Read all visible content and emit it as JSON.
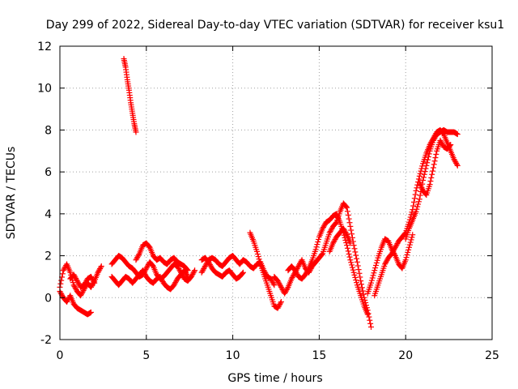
{
  "chart_data": {
    "type": "scatter",
    "title": "Day 299 of 2022, Sidereal Day-to-day VTEC variation (SDTVAR) for receiver ksu1",
    "xlabel": "GPS time / hours",
    "ylabel": "SDTVAR / TECUs",
    "xlim": [
      0,
      25
    ],
    "ylim": [
      -2,
      12
    ],
    "xticks": [
      0,
      5,
      10,
      15,
      20,
      25
    ],
    "xtick_labels": [
      "0",
      "5",
      "10",
      "15",
      "20",
      "25"
    ],
    "yticks": [
      -2,
      0,
      2,
      4,
      6,
      8,
      10,
      12
    ],
    "ytick_labels": [
      "-2",
      "0",
      "2",
      "4",
      "6",
      "8",
      "10",
      "12"
    ],
    "grid": true,
    "marker": "+",
    "series": [
      {
        "name": "SDTVAR",
        "color": "#ff0000",
        "tracks": [
          [
            [
              3.7,
              11.4
            ],
            [
              3.8,
              11.0
            ],
            [
              3.9,
              10.4
            ],
            [
              4.0,
              9.9
            ],
            [
              4.1,
              9.3
            ],
            [
              4.2,
              8.8
            ],
            [
              4.3,
              8.3
            ],
            [
              4.4,
              7.9
            ]
          ],
          [
            [
              0.0,
              0.5
            ],
            [
              0.2,
              1.3
            ],
            [
              0.4,
              1.6
            ],
            [
              0.6,
              1.2
            ],
            [
              0.8,
              0.6
            ],
            [
              1.0,
              0.3
            ],
            [
              1.2,
              0.1
            ],
            [
              1.4,
              0.4
            ],
            [
              1.6,
              0.7
            ],
            [
              1.8,
              0.5
            ],
            [
              2.0,
              0.8
            ],
            [
              2.2,
              1.2
            ],
            [
              2.4,
              1.5
            ]
          ],
          [
            [
              0.0,
              0.3
            ],
            [
              0.2,
              0.0
            ],
            [
              0.4,
              -0.2
            ],
            [
              0.6,
              0.1
            ],
            [
              0.8,
              -0.3
            ],
            [
              1.0,
              -0.5
            ],
            [
              1.2,
              -0.6
            ],
            [
              1.4,
              -0.7
            ],
            [
              1.6,
              -0.8
            ],
            [
              1.8,
              -0.7
            ]
          ],
          [
            [
              0.6,
              0.9
            ],
            [
              0.8,
              1.1
            ],
            [
              1.0,
              0.8
            ],
            [
              1.2,
              0.5
            ],
            [
              1.4,
              0.6
            ],
            [
              1.6,
              0.9
            ],
            [
              1.8,
              1.0
            ],
            [
              2.0,
              0.7
            ]
          ],
          [
            [
              3.0,
              1.6
            ],
            [
              3.2,
              1.8
            ],
            [
              3.4,
              2.0
            ],
            [
              3.6,
              1.9
            ],
            [
              3.8,
              1.7
            ],
            [
              4.0,
              1.5
            ],
            [
              4.2,
              1.4
            ],
            [
              4.4,
              1.2
            ],
            [
              4.6,
              1.0
            ],
            [
              4.8,
              1.1
            ],
            [
              5.0,
              1.4
            ],
            [
              5.2,
              1.7
            ],
            [
              5.4,
              1.5
            ],
            [
              5.6,
              1.1
            ],
            [
              5.8,
              0.9
            ],
            [
              6.0,
              1.0
            ],
            [
              6.2,
              1.2
            ],
            [
              6.4,
              1.4
            ],
            [
              6.6,
              1.6
            ],
            [
              6.8,
              1.5
            ],
            [
              7.0,
              1.2
            ],
            [
              7.2,
              0.9
            ],
            [
              7.4,
              0.8
            ],
            [
              7.6,
              1.0
            ],
            [
              7.8,
              1.3
            ]
          ],
          [
            [
              3.0,
              1.0
            ],
            [
              3.2,
              0.8
            ],
            [
              3.4,
              0.6
            ],
            [
              3.6,
              0.8
            ],
            [
              3.8,
              1.0
            ],
            [
              4.0,
              0.9
            ],
            [
              4.2,
              0.7
            ],
            [
              4.4,
              0.9
            ],
            [
              4.6,
              1.1
            ],
            [
              4.8,
              1.3
            ],
            [
              5.0,
              1.0
            ],
            [
              5.2,
              0.8
            ],
            [
              5.4,
              0.7
            ],
            [
              5.6,
              0.9
            ],
            [
              5.8,
              1.0
            ],
            [
              6.0,
              0.7
            ],
            [
              6.2,
              0.5
            ],
            [
              6.4,
              0.4
            ],
            [
              6.6,
              0.6
            ],
            [
              6.8,
              0.9
            ],
            [
              7.0,
              1.1
            ],
            [
              7.2,
              1.3
            ],
            [
              7.4,
              1.0
            ]
          ],
          [
            [
              4.4,
              1.8
            ],
            [
              4.6,
              2.1
            ],
            [
              4.8,
              2.5
            ],
            [
              5.0,
              2.6
            ],
            [
              5.2,
              2.4
            ],
            [
              5.4,
              2.0
            ],
            [
              5.6,
              1.8
            ],
            [
              5.8,
              1.9
            ],
            [
              6.0,
              1.7
            ],
            [
              6.2,
              1.6
            ],
            [
              6.4,
              1.8
            ],
            [
              6.6,
              1.9
            ],
            [
              6.8,
              1.7
            ],
            [
              7.0,
              1.6
            ],
            [
              7.2,
              1.5
            ],
            [
              7.4,
              1.3
            ]
          ],
          [
            [
              8.2,
              1.2
            ],
            [
              8.4,
              1.5
            ],
            [
              8.6,
              1.8
            ],
            [
              8.8,
              1.9
            ],
            [
              9.0,
              1.8
            ],
            [
              9.2,
              1.6
            ],
            [
              9.4,
              1.5
            ],
            [
              9.6,
              1.7
            ],
            [
              9.8,
              1.9
            ],
            [
              10.0,
              2.0
            ],
            [
              10.2,
              1.8
            ],
            [
              10.4,
              1.6
            ],
            [
              10.6,
              1.8
            ],
            [
              10.8,
              1.7
            ],
            [
              11.0,
              1.5
            ],
            [
              11.2,
              1.4
            ],
            [
              11.4,
              1.6
            ],
            [
              11.6,
              1.7
            ],
            [
              11.8,
              1.3
            ],
            [
              12.0,
              1.0
            ],
            [
              12.2,
              0.9
            ],
            [
              12.4,
              0.6
            ]
          ],
          [
            [
              8.2,
              1.8
            ],
            [
              8.4,
              1.9
            ],
            [
              8.6,
              1.7
            ],
            [
              8.8,
              1.4
            ],
            [
              9.0,
              1.2
            ],
            [
              9.2,
              1.1
            ],
            [
              9.4,
              1.0
            ],
            [
              9.6,
              1.2
            ],
            [
              9.8,
              1.3
            ],
            [
              10.0,
              1.1
            ],
            [
              10.2,
              0.9
            ],
            [
              10.4,
              1.0
            ],
            [
              10.6,
              1.2
            ]
          ],
          [
            [
              11.0,
              3.1
            ],
            [
              11.2,
              2.7
            ],
            [
              11.4,
              2.2
            ],
            [
              11.6,
              1.6
            ],
            [
              11.8,
              1.1
            ],
            [
              12.0,
              0.6
            ],
            [
              12.2,
              0.1
            ],
            [
              12.4,
              -0.4
            ],
            [
              12.6,
              -0.5
            ],
            [
              12.8,
              -0.2
            ]
          ],
          [
            [
              12.4,
              1.0
            ],
            [
              12.6,
              0.8
            ],
            [
              12.8,
              0.5
            ],
            [
              13.0,
              0.2
            ],
            [
              13.2,
              0.5
            ],
            [
              13.4,
              0.9
            ],
            [
              13.6,
              1.2
            ],
            [
              13.8,
              1.5
            ],
            [
              14.0,
              1.8
            ],
            [
              14.2,
              1.4
            ],
            [
              14.4,
              1.2
            ],
            [
              14.6,
              1.5
            ],
            [
              14.8,
              1.7
            ],
            [
              15.0,
              1.9
            ],
            [
              15.2,
              2.1
            ],
            [
              15.4,
              2.6
            ],
            [
              15.6,
              3.1
            ],
            [
              15.8,
              3.4
            ],
            [
              16.0,
              3.6
            ],
            [
              16.2,
              4.1
            ],
            [
              16.4,
              4.5
            ],
            [
              16.6,
              4.3
            ],
            [
              16.8,
              3.4
            ],
            [
              17.0,
              2.5
            ],
            [
              17.2,
              1.7
            ],
            [
              17.4,
              0.8
            ],
            [
              17.6,
              0.0
            ],
            [
              17.8,
              -0.6
            ],
            [
              18.0,
              -1.4
            ]
          ],
          [
            [
              13.2,
              1.3
            ],
            [
              13.4,
              1.5
            ],
            [
              13.6,
              1.3
            ],
            [
              13.8,
              1.0
            ],
            [
              14.0,
              0.9
            ],
            [
              14.2,
              1.1
            ],
            [
              14.4,
              1.4
            ],
            [
              14.6,
              1.8
            ],
            [
              14.8,
              2.3
            ],
            [
              15.0,
              2.9
            ],
            [
              15.2,
              3.3
            ],
            [
              15.4,
              3.6
            ],
            [
              15.6,
              3.7
            ],
            [
              15.8,
              3.9
            ],
            [
              16.0,
              4.0
            ],
            [
              16.2,
              3.6
            ],
            [
              16.4,
              3.1
            ],
            [
              16.6,
              2.5
            ],
            [
              16.8,
              1.8
            ],
            [
              17.0,
              1.2
            ],
            [
              17.2,
              0.6
            ],
            [
              17.4,
              0.1
            ],
            [
              17.6,
              -0.4
            ],
            [
              17.8,
              -0.8
            ]
          ],
          [
            [
              15.6,
              2.2
            ],
            [
              15.8,
              2.6
            ],
            [
              16.0,
              2.9
            ],
            [
              16.2,
              3.1
            ],
            [
              16.4,
              3.3
            ],
            [
              16.6,
              3.0
            ],
            [
              16.8,
              2.6
            ]
          ],
          [
            [
              17.8,
              0.2
            ],
            [
              18.0,
              0.7
            ],
            [
              18.2,
              1.3
            ],
            [
              18.4,
              1.9
            ],
            [
              18.6,
              2.4
            ],
            [
              18.8,
              2.8
            ],
            [
              19.0,
              2.7
            ],
            [
              19.2,
              2.3
            ],
            [
              19.4,
              2.0
            ],
            [
              19.6,
              1.6
            ],
            [
              19.8,
              1.4
            ],
            [
              20.0,
              1.8
            ],
            [
              20.2,
              2.4
            ],
            [
              20.4,
              3.0
            ]
          ],
          [
            [
              18.2,
              0.1
            ],
            [
              18.4,
              0.6
            ],
            [
              18.6,
              1.1
            ],
            [
              18.8,
              1.6
            ],
            [
              19.0,
              1.9
            ],
            [
              19.2,
              2.1
            ],
            [
              19.4,
              2.4
            ],
            [
              19.6,
              2.7
            ],
            [
              19.8,
              2.9
            ],
            [
              20.0,
              3.1
            ],
            [
              20.2,
              3.6
            ],
            [
              20.4,
              4.2
            ],
            [
              20.6,
              5.1
            ],
            [
              20.8,
              5.8
            ],
            [
              21.0,
              6.4
            ],
            [
              21.2,
              6.9
            ],
            [
              21.4,
              7.3
            ],
            [
              21.6,
              7.6
            ],
            [
              21.8,
              7.9
            ],
            [
              22.0,
              8.0
            ],
            [
              22.2,
              7.8
            ],
            [
              22.4,
              7.4
            ],
            [
              22.6,
              7.0
            ],
            [
              22.8,
              6.6
            ],
            [
              23.0,
              6.3
            ]
          ],
          [
            [
              20.0,
              2.8
            ],
            [
              20.2,
              3.3
            ],
            [
              20.4,
              3.7
            ],
            [
              20.6,
              4.1
            ],
            [
              20.8,
              4.7
            ],
            [
              21.0,
              5.6
            ],
            [
              21.2,
              6.3
            ],
            [
              21.4,
              7.0
            ],
            [
              21.6,
              7.5
            ],
            [
              21.8,
              7.8
            ],
            [
              22.0,
              7.9
            ],
            [
              22.2,
              8.0
            ],
            [
              22.4,
              7.9
            ],
            [
              22.6,
              7.9
            ],
            [
              22.8,
              7.9
            ],
            [
              23.0,
              7.8
            ]
          ],
          [
            [
              20.8,
              5.5
            ],
            [
              21.0,
              5.1
            ],
            [
              21.2,
              4.9
            ],
            [
              21.4,
              5.4
            ],
            [
              21.6,
              6.2
            ],
            [
              21.8,
              7.0
            ],
            [
              22.0,
              7.5
            ],
            [
              22.2,
              7.2
            ],
            [
              22.4,
              7.1
            ],
            [
              22.6,
              7.3
            ]
          ]
        ]
      }
    ]
  }
}
